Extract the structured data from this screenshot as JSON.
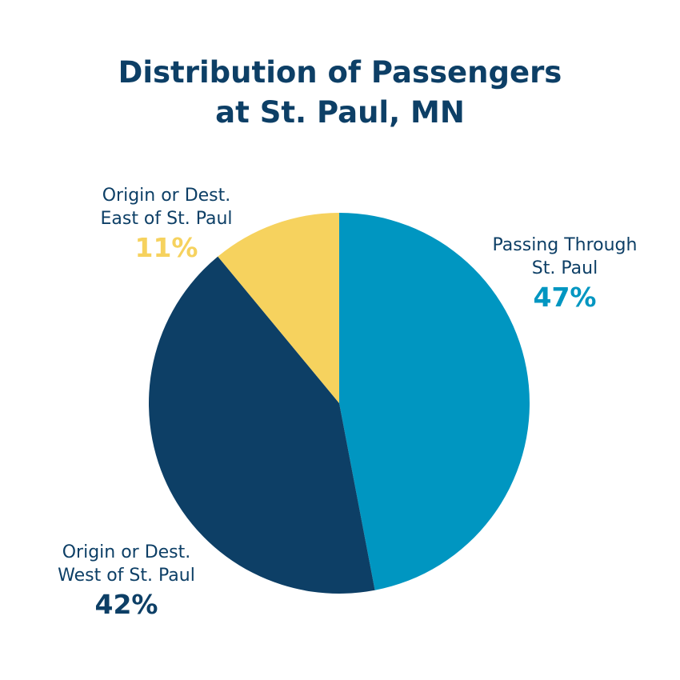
{
  "title": {
    "line1": "Distribution of Passengers",
    "line2": "at St. Paul, MN"
  },
  "chart_data": {
    "type": "pie",
    "title": "Distribution of Passengers at St. Paul, MN",
    "slices": [
      {
        "label_line1": "Passing Through",
        "label_line2": "St. Paul",
        "value": 47,
        "value_label": "47%",
        "color": "#0096c1"
      },
      {
        "label_line1": "Origin or Dest.",
        "label_line2": "West of St. Paul",
        "value": 42,
        "value_label": "42%",
        "color": "#0d3f66"
      },
      {
        "label_line1": "Origin or Dest.",
        "label_line2": "East of St. Paul",
        "value": 11,
        "value_label": "11%",
        "color": "#f6d25e"
      }
    ]
  }
}
